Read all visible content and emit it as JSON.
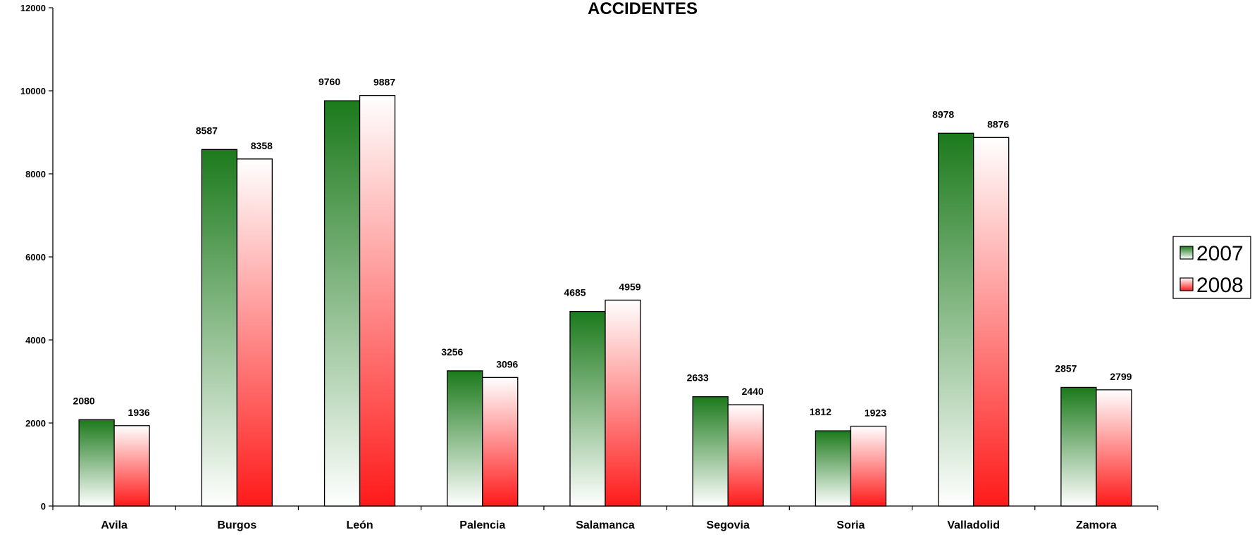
{
  "chart_data": {
    "type": "bar",
    "title": "ACCIDENTES",
    "categories": [
      "Avila",
      "Burgos",
      "León",
      "Palencia",
      "Salamanca",
      "Segovia",
      "Soria",
      "Valladolid",
      "Zamora"
    ],
    "series": [
      {
        "name": "2007",
        "values": [
          2080,
          8587,
          9760,
          3256,
          4685,
          2633,
          1812,
          8978,
          2857
        ],
        "color_top": "#1c7a1c",
        "color_bottom": "#ffffff"
      },
      {
        "name": "2008",
        "values": [
          1936,
          8358,
          9887,
          3096,
          4959,
          2440,
          1923,
          8876,
          2799
        ],
        "color_top": "#ffffff",
        "color_bottom": "#ff1a1a"
      }
    ],
    "y_ticks": [
      "0",
      "2000",
      "4000",
      "6000",
      "8000",
      "10000",
      "12000"
    ],
    "ylim": [
      0,
      12000
    ],
    "grid": false,
    "legend_position": "right",
    "data_labels": true
  }
}
